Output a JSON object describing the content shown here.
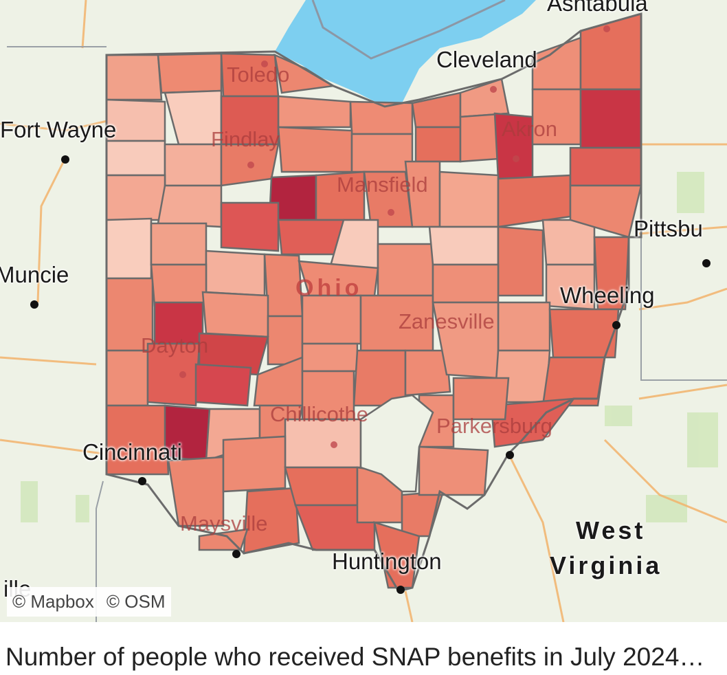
{
  "map": {
    "cities": {
      "ashtabula": "Ashtabula",
      "cleveland": "Cleveland",
      "toledo": "Toledo",
      "akron": "Akron",
      "fort_wayne": "Fort Wayne",
      "findlay": "Findlay",
      "mansfield": "Mansfield",
      "pittsburgh": "Pittsbu",
      "muncie": "Muncie",
      "ohio": "Ohio",
      "wheeling": "Wheeling",
      "zanesville": "Zanesville",
      "dayton": "Dayton",
      "chillicothe": "Chillicothe",
      "parkersburg": "Parkersburg",
      "cincinnati": "Cincinnati",
      "maysville": "Maysville",
      "huntington": "Huntington",
      "west_virginia_1": "West",
      "west_virginia_2": "Virginia",
      "ille": "ille"
    },
    "attribution": {
      "mapbox": "© Mapbox",
      "osm": "© OSM"
    },
    "colors": {
      "water": "#7dcff0",
      "land": "#eef2e6",
      "county_border": "#6b6b6b",
      "scale_low": "#f8c9b9",
      "scale_high": "#b2243f"
    }
  },
  "caption": "Number of people who received SNAP benefits in July 2024…"
}
